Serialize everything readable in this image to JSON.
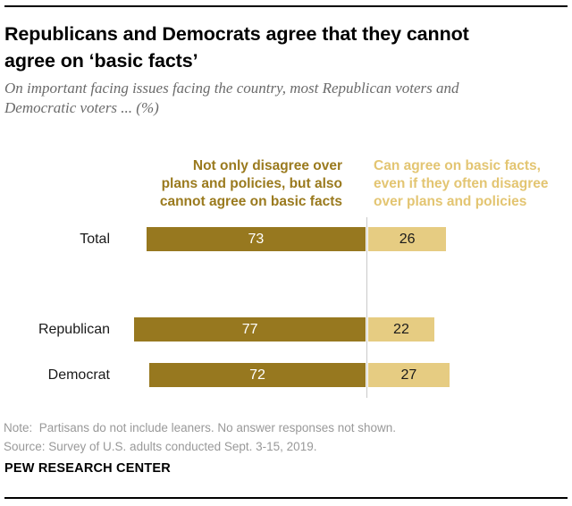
{
  "header": {
    "title_lines": [
      "Republicans and Democrats agree that they cannot",
      "agree on ‘basic facts’"
    ],
    "subtitle_lines": [
      "On important facing issues facing the country, most Republican voters and",
      "Democratic voters ... (%)"
    ]
  },
  "legend": {
    "left": {
      "lines": [
        "Not only disagree over",
        "plans and policies, but also",
        "cannot agree on basic facts"
      ],
      "color": "#9A7A1E"
    },
    "right": {
      "lines": [
        "Can agree on basic facts,",
        "even if they often disagree",
        "over plans and policies"
      ],
      "color": "#E3C572"
    }
  },
  "chart_data": {
    "type": "bar",
    "orientation": "horizontal",
    "stacked": true,
    "categories": [
      "Total",
      "Republican",
      "Democrat"
    ],
    "series": [
      {
        "name": "Not only disagree over plans and policies, but also cannot agree on basic facts",
        "color": "#97781F",
        "values": [
          73,
          77,
          72
        ]
      },
      {
        "name": "Can agree on basic facts, even if they often disagree over plans and policies",
        "color": "#E6CC82",
        "values": [
          26,
          22,
          27
        ]
      }
    ],
    "value_unit": "%",
    "xlim": [
      0,
      100
    ],
    "legend_position": "top-columns",
    "divider_line": {
      "color": "#C9C9C9",
      "at_split": true
    },
    "value_labels": "inside-center"
  },
  "footer": {
    "note": "Note:  Partisans do not include leaners. No answer responses not shown.",
    "source": "Source: Survey of U.S. adults conducted Sept. 3-15, 2019.",
    "brand": "PEW RESEARCH CENTER"
  }
}
